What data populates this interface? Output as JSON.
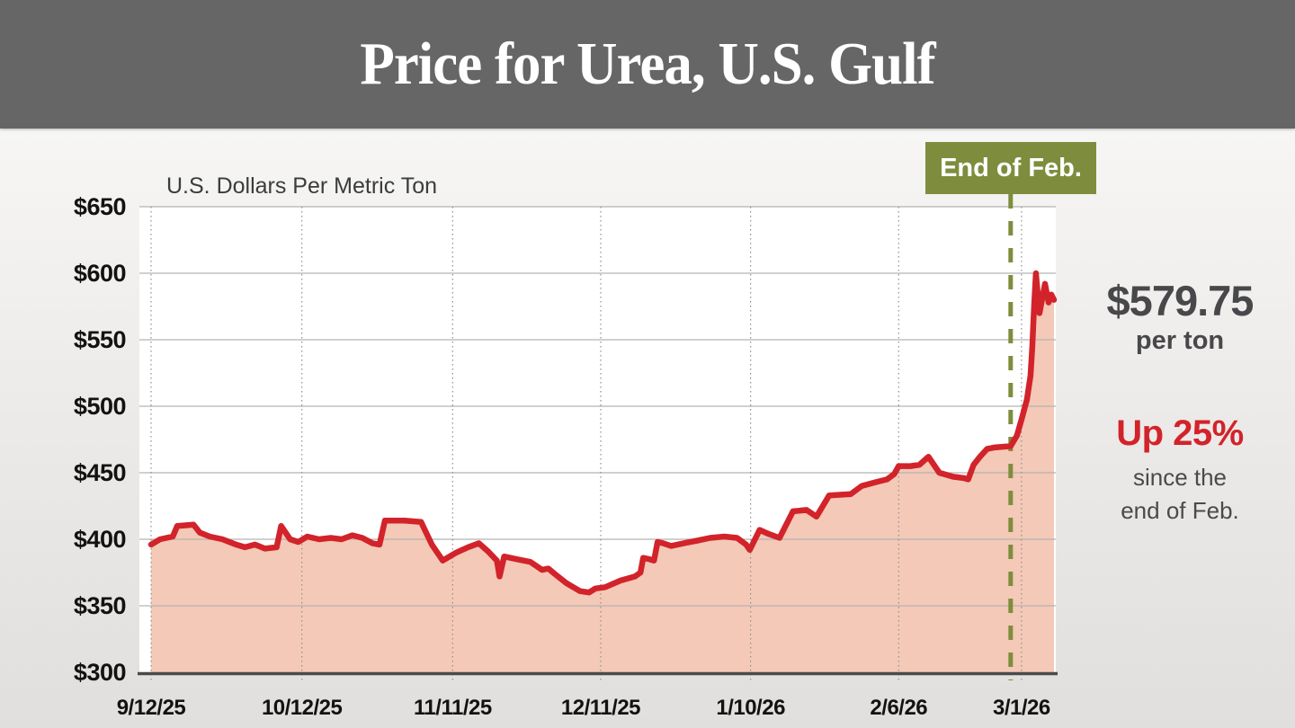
{
  "header": {
    "title": "Price for Urea, U.S. Gulf"
  },
  "chart_data": {
    "type": "area",
    "title": "Price for Urea, U.S. Gulf",
    "axis_label": "U.S. Dollars Per Metric Ton",
    "ylim": [
      300,
      650
    ],
    "grid": true,
    "y_ticks": [
      {
        "label": "$650",
        "value": 650
      },
      {
        "label": "$600",
        "value": 600
      },
      {
        "label": "$550",
        "value": 550
      },
      {
        "label": "$500",
        "value": 500
      },
      {
        "label": "$450",
        "value": 450
      },
      {
        "label": "$400",
        "value": 400
      },
      {
        "label": "$350",
        "value": 350
      },
      {
        "label": "$300",
        "value": 300
      }
    ],
    "x_ticks": [
      {
        "label": "9/12/25",
        "pos": 0.0
      },
      {
        "label": "10/12/25",
        "pos": 0.167
      },
      {
        "label": "11/11/25",
        "pos": 0.334
      },
      {
        "label": "12/11/25",
        "pos": 0.498
      },
      {
        "label": "1/10/26",
        "pos": 0.664
      },
      {
        "label": "2/6/26",
        "pos": 0.828
      },
      {
        "label": "3/1/26",
        "pos": 0.964
      }
    ],
    "annotation": {
      "label": "End of Feb.",
      "pos": 0.952
    },
    "series": [
      {
        "name": "Urea price, U.S. Gulf (USD per metric ton)",
        "points": [
          [
            0.0,
            396
          ],
          [
            0.01,
            400
          ],
          [
            0.024,
            402
          ],
          [
            0.029,
            410
          ],
          [
            0.047,
            411
          ],
          [
            0.054,
            405
          ],
          [
            0.065,
            402
          ],
          [
            0.079,
            400
          ],
          [
            0.094,
            396
          ],
          [
            0.104,
            394
          ],
          [
            0.115,
            396
          ],
          [
            0.126,
            393
          ],
          [
            0.139,
            394
          ],
          [
            0.144,
            410
          ],
          [
            0.154,
            400
          ],
          [
            0.163,
            398
          ],
          [
            0.173,
            402
          ],
          [
            0.186,
            400
          ],
          [
            0.199,
            401
          ],
          [
            0.211,
            400
          ],
          [
            0.223,
            403
          ],
          [
            0.234,
            401
          ],
          [
            0.245,
            397
          ],
          [
            0.253,
            396
          ],
          [
            0.259,
            414
          ],
          [
            0.281,
            414
          ],
          [
            0.299,
            413
          ],
          [
            0.311,
            396
          ],
          [
            0.323,
            384
          ],
          [
            0.338,
            390
          ],
          [
            0.351,
            394
          ],
          [
            0.363,
            397
          ],
          [
            0.373,
            391
          ],
          [
            0.383,
            384
          ],
          [
            0.386,
            372
          ],
          [
            0.391,
            387
          ],
          [
            0.405,
            385
          ],
          [
            0.42,
            383
          ],
          [
            0.433,
            377
          ],
          [
            0.44,
            378
          ],
          [
            0.447,
            374
          ],
          [
            0.46,
            367
          ],
          [
            0.475,
            361
          ],
          [
            0.485,
            360
          ],
          [
            0.492,
            363
          ],
          [
            0.503,
            364
          ],
          [
            0.52,
            369
          ],
          [
            0.536,
            372
          ],
          [
            0.542,
            375
          ],
          [
            0.545,
            386
          ],
          [
            0.552,
            385
          ],
          [
            0.557,
            384
          ],
          [
            0.561,
            398
          ],
          [
            0.567,
            397
          ],
          [
            0.576,
            395
          ],
          [
            0.59,
            397
          ],
          [
            0.605,
            399
          ],
          [
            0.619,
            401
          ],
          [
            0.635,
            402
          ],
          [
            0.649,
            401
          ],
          [
            0.659,
            396
          ],
          [
            0.663,
            392
          ],
          [
            0.674,
            407
          ],
          [
            0.684,
            404
          ],
          [
            0.696,
            401
          ],
          [
            0.711,
            421
          ],
          [
            0.726,
            422
          ],
          [
            0.737,
            417
          ],
          [
            0.751,
            433
          ],
          [
            0.775,
            434
          ],
          [
            0.787,
            440
          ],
          [
            0.803,
            443
          ],
          [
            0.815,
            445
          ],
          [
            0.823,
            449
          ],
          [
            0.828,
            455
          ],
          [
            0.841,
            455
          ],
          [
            0.851,
            456
          ],
          [
            0.861,
            462
          ],
          [
            0.873,
            450
          ],
          [
            0.888,
            447
          ],
          [
            0.9,
            446
          ],
          [
            0.905,
            445
          ],
          [
            0.911,
            456
          ],
          [
            0.918,
            462
          ],
          [
            0.926,
            468
          ],
          [
            0.934,
            469
          ],
          [
            0.952,
            470
          ],
          [
            0.959,
            478
          ],
          [
            0.964,
            490
          ],
          [
            0.97,
            505
          ],
          [
            0.974,
            523
          ],
          [
            0.976,
            545
          ],
          [
            0.978,
            575
          ],
          [
            0.98,
            600
          ],
          [
            0.984,
            570
          ],
          [
            0.99,
            592
          ],
          [
            0.994,
            578
          ],
          [
            0.997,
            584
          ],
          [
            1.0,
            580
          ]
        ]
      }
    ],
    "colors": {
      "line": "#d2232b",
      "fill": "#f4c9b7",
      "annotation": "#7e8d3d",
      "grid": "#b3b3b3",
      "tick_dotted": "#8f8f8f",
      "axis": "#4a4a4a",
      "plot_bg": "#ffffff"
    }
  },
  "callout": {
    "price": "$579.75",
    "price_unit": "per ton",
    "change": "Up 25%",
    "change_note_line1": "since the",
    "change_note_line2": "end of Feb.",
    "price_color": "#48484a",
    "change_color": "#d2232b"
  }
}
